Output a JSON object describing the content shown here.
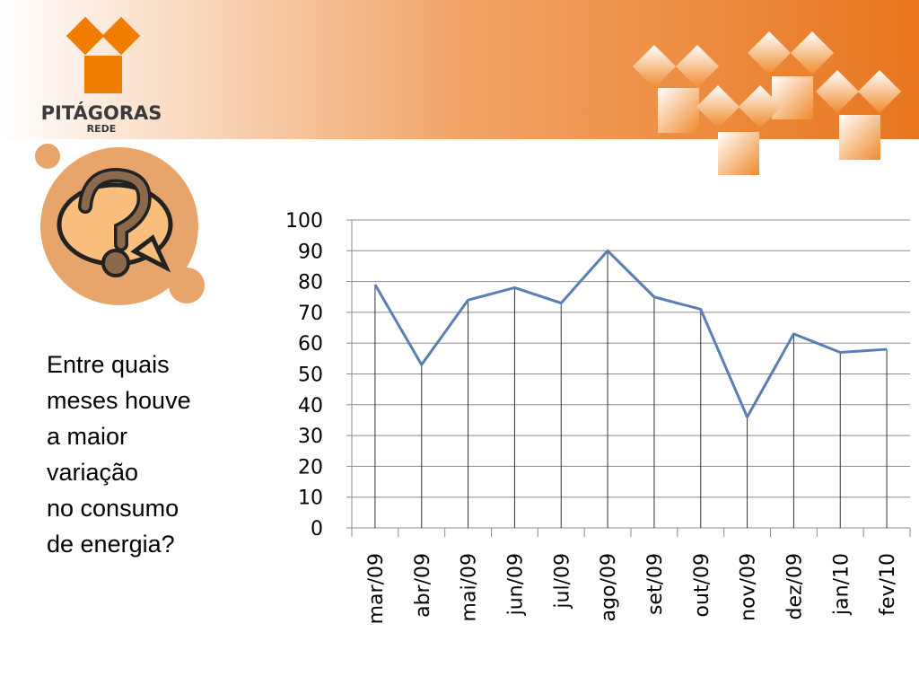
{
  "logo": {
    "name": "PITÁGORAS",
    "sub": "REDE"
  },
  "question_lines": [
    "Entre quais",
    "meses houve",
    "a maior",
    "variação",
    "no consumo",
    "de energia?"
  ],
  "chart_data": {
    "type": "line",
    "categories": [
      "mar/09",
      "abr/09",
      "mai/09",
      "jun/09",
      "jul/09",
      "ago/09",
      "set/09",
      "out/09",
      "nov/09",
      "dez/09",
      "jan/10",
      "fev/10"
    ],
    "values": [
      79,
      53,
      74,
      78,
      73,
      90,
      75,
      71,
      36,
      63,
      57,
      58
    ],
    "color": "#5a7fb3",
    "ylim": [
      0,
      100
    ],
    "yticks": [
      0,
      10,
      20,
      30,
      40,
      50,
      60,
      70,
      80,
      90,
      100
    ],
    "grid": true,
    "drop_lines": true
  }
}
